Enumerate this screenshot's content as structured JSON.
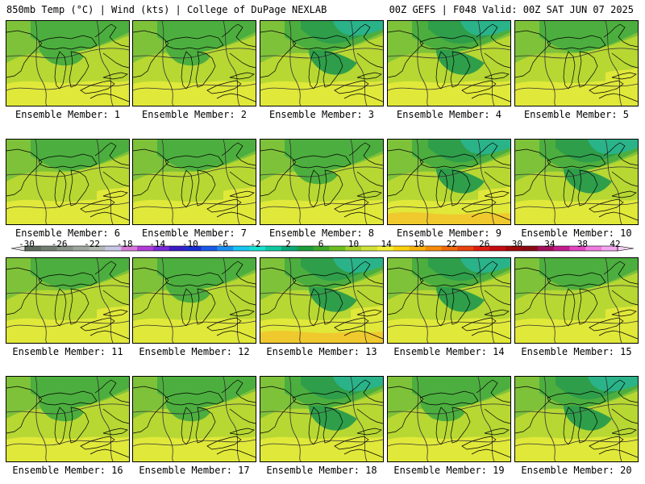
{
  "header": {
    "left": "850mb Temp (°C) | Wind (kts) | College of DuPage NEXLAB",
    "right": "00Z GEFS | F048 Valid: 00Z SAT JUN 07 2025"
  },
  "caption_prefix": "Ensemble Member: ",
  "members": [
    {
      "id": "1",
      "label": "Ensemble Member: 1",
      "variant": 1
    },
    {
      "id": "2",
      "label": "Ensemble Member: 2",
      "variant": 1
    },
    {
      "id": "3",
      "label": "Ensemble Member: 3",
      "variant": 2
    },
    {
      "id": "4",
      "label": "Ensemble Member: 4",
      "variant": 2
    },
    {
      "id": "5",
      "label": "Ensemble Member: 5",
      "variant": 0
    },
    {
      "id": "6",
      "label": "Ensemble Member: 6",
      "variant": 0
    },
    {
      "id": "7",
      "label": "Ensemble Member: 7",
      "variant": 0
    },
    {
      "id": "8",
      "label": "Ensemble Member: 8",
      "variant": 1
    },
    {
      "id": "9",
      "label": "Ensemble Member: 9",
      "variant": 3
    },
    {
      "id": "10",
      "label": "Ensemble Member: 10",
      "variant": 2
    },
    {
      "id": "11",
      "label": "Ensemble Member: 11",
      "variant": 0
    },
    {
      "id": "12",
      "label": "Ensemble Member: 12",
      "variant": 1
    },
    {
      "id": "13",
      "label": "Ensemble Member: 13",
      "variant": 3
    },
    {
      "id": "14",
      "label": "Ensemble Member: 14",
      "variant": 2
    },
    {
      "id": "15",
      "label": "Ensemble Member: 15",
      "variant": 0
    },
    {
      "id": "16",
      "label": "Ensemble Member: 16",
      "variant": 1
    },
    {
      "id": "17",
      "label": "Ensemble Member: 17",
      "variant": 1
    },
    {
      "id": "18",
      "label": "Ensemble Member: 18",
      "variant": 2
    },
    {
      "id": "19",
      "label": "Ensemble Member: 19",
      "variant": 1
    },
    {
      "id": "20",
      "label": "Ensemble Member: 20",
      "variant": 2
    }
  ],
  "colorbar": {
    "labels": [
      "-30",
      "-26",
      "-22",
      "-18",
      "-14",
      "-10",
      "-6",
      "-2",
      "2",
      "6",
      "10",
      "14",
      "18",
      "22",
      "26",
      "30",
      "34",
      "38",
      "42"
    ],
    "colors": [
      "#5f6b5f",
      "#737e73",
      "#8a938a",
      "#9ea69e",
      "#b2b8b2",
      "#c7c7e6",
      "#d67ad6",
      "#b23cd6",
      "#7a2ad6",
      "#3a1cc4",
      "#1a2ed6",
      "#1a5ae6",
      "#1a8ef0",
      "#18c4f0",
      "#18e0d0",
      "#10c8a0",
      "#0aa878",
      "#1c9c3c",
      "#3ea82a",
      "#6cbc22",
      "#a6d02a",
      "#d0e23a",
      "#f2f034",
      "#fad20e",
      "#f8b20a",
      "#f48c0a",
      "#f06a0c",
      "#e8420e",
      "#e01c10",
      "#c40c10",
      "#a00a0a",
      "#8a0a14",
      "#a2105c",
      "#c21c8c",
      "#e046c0",
      "#f07ae0",
      "#f4a6f0"
    ],
    "left_arrow_color": "#e0e0e0",
    "right_arrow_color": "#f4cdf2"
  },
  "field_colors": {
    "band_cool_dark": "#2f9e4a",
    "band_cool": "#4cae3e",
    "band_mid": "#7ec23a",
    "band_warm": "#b7d733",
    "band_yellow": "#e0e83a",
    "band_gold": "#f0c92e",
    "band_teal": "#2ab388",
    "contour": "#333333",
    "coast": "#000000"
  }
}
